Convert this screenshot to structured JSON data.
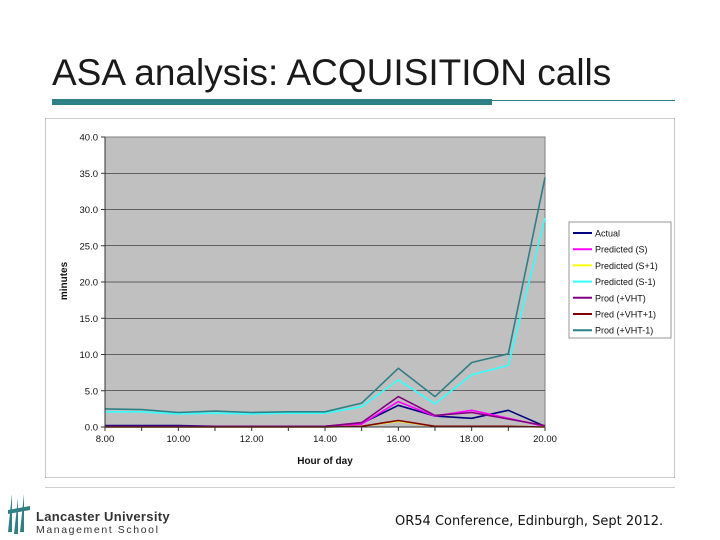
{
  "slide": {
    "title": "ASA analysis: ACQUISITION calls",
    "footer": "OR54 Conference, Edinburgh, Sept 2012.",
    "logo_line1": "Lancaster University",
    "logo_line2": "Management School"
  },
  "colors": {
    "accent": "#2f7f86",
    "plot_bg": "#c0c0c0"
  },
  "chart_data": {
    "type": "line",
    "xlabel": "Hour of day",
    "ylabel": "minutes",
    "ylim": [
      0,
      40
    ],
    "xlim": [
      8,
      20
    ],
    "yticks": [
      0,
      5,
      10,
      15,
      20,
      25,
      30,
      35,
      40
    ],
    "ytick_labels": [
      "0.0",
      "5.0",
      "10.0",
      "15.0",
      "20.0",
      "25.0",
      "30.0",
      "35.0",
      "40.0"
    ],
    "xticks": [
      8,
      10,
      12,
      14,
      16,
      18,
      20
    ],
    "xtick_labels": [
      "8.00",
      "10.00",
      "12.00",
      "14.00",
      "16.00",
      "18.00",
      "20.00"
    ],
    "grid": "horizontal",
    "legend": "right",
    "x": [
      8,
      9,
      10,
      11,
      12,
      13,
      14,
      15,
      16,
      17,
      18,
      19,
      20
    ],
    "series": [
      {
        "name": "Actual",
        "color": "#000080",
        "values": [
          0.2,
          0.2,
          0.2,
          0.1,
          0.1,
          0.1,
          0.1,
          0.5,
          3.0,
          1.5,
          1.2,
          2.3,
          0.1
        ]
      },
      {
        "name": "Predicted (S)",
        "color": "#ff00ff",
        "values": [
          0.1,
          0.1,
          0.1,
          0.1,
          0.1,
          0.1,
          0.1,
          0.4,
          3.5,
          1.5,
          2.3,
          1.2,
          0.1
        ]
      },
      {
        "name": "Predicted (S+1)",
        "color": "#ffff00",
        "values": [
          0.0,
          0.0,
          0.0,
          0.0,
          0.0,
          0.0,
          0.0,
          0.1,
          0.8,
          0.1,
          0.1,
          0.1,
          0.0
        ]
      },
      {
        "name": "Predicted (S-1)",
        "color": "#33ffff",
        "values": [
          2.1,
          2.1,
          1.8,
          1.9,
          1.8,
          1.9,
          1.9,
          2.8,
          6.5,
          3.2,
          7.2,
          8.5,
          28.8
        ]
      },
      {
        "name": "Prod (+VHT)",
        "color": "#800080",
        "values": [
          0.1,
          0.1,
          0.1,
          0.1,
          0.1,
          0.1,
          0.1,
          0.6,
          4.2,
          1.6,
          2.0,
          1.1,
          0.2
        ]
      },
      {
        "name": "Pred (+VHT+1)",
        "color": "#800000",
        "values": [
          0.0,
          0.0,
          0.0,
          0.0,
          0.0,
          0.0,
          0.0,
          0.1,
          0.9,
          0.1,
          0.1,
          0.1,
          0.0
        ]
      },
      {
        "name": "Prod (+VHT-1)",
        "color": "#2f7f86",
        "values": [
          2.5,
          2.4,
          2.0,
          2.2,
          2.0,
          2.1,
          2.1,
          3.3,
          8.1,
          4.2,
          8.9,
          10.1,
          34.4
        ]
      }
    ]
  }
}
